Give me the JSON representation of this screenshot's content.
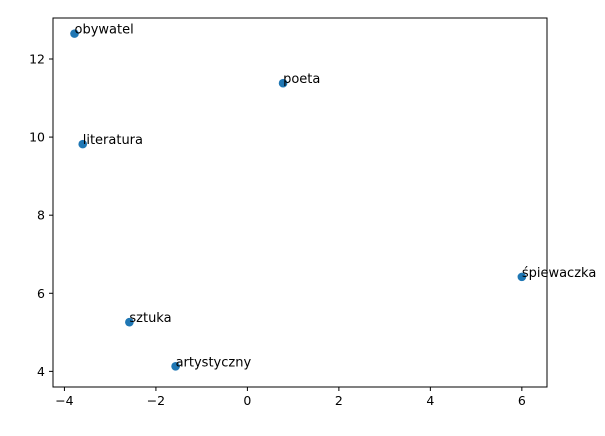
{
  "chart_data": {
    "type": "scatter",
    "title": "",
    "xlabel": "",
    "ylabel": "",
    "xlim": [
      -4.25,
      6.55
    ],
    "ylim": [
      3.6,
      13.05
    ],
    "xticks": [
      -4,
      -2,
      0,
      2,
      4,
      6
    ],
    "yticks": [
      4,
      6,
      8,
      10,
      12
    ],
    "grid": false,
    "marker_color": "#1f77b4",
    "points": [
      {
        "label": "obywatel",
        "x": -3.78,
        "y": 12.65
      },
      {
        "label": "poeta",
        "x": 0.78,
        "y": 11.38
      },
      {
        "label": "literatura",
        "x": -3.6,
        "y": 9.82
      },
      {
        "label": "śpiewaczka",
        "x": 6.0,
        "y": 6.42
      },
      {
        "label": "sztuka",
        "x": -2.58,
        "y": 5.26
      },
      {
        "label": "artystyczny",
        "x": -1.57,
        "y": 4.13
      }
    ]
  }
}
